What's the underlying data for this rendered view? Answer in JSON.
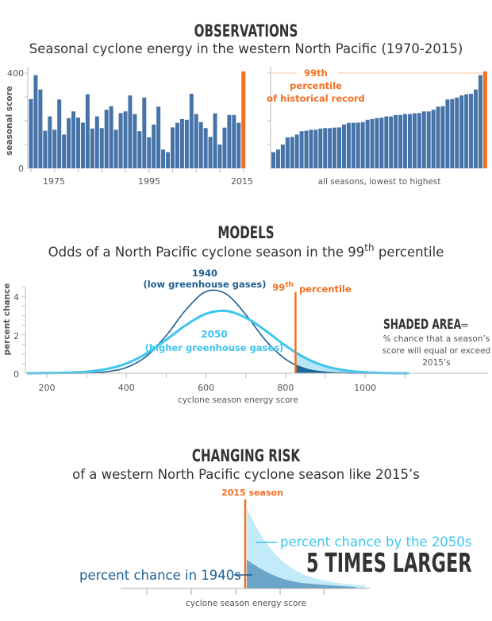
{
  "colors": {
    "bar": "#4673a8",
    "highlight": "#f26f21",
    "dark_blue": "#1d5e92",
    "light_blue": "#3ec5f0",
    "text": "#333333"
  },
  "sections": {
    "observations": {
      "heading": "OBSERVATIONS",
      "subtitle": "Seasonal cyclone energy in the western North Pacific (1970-2015)"
    },
    "models": {
      "heading": "MODELS",
      "subtitle_pre": "Odds of a North Pacific cyclone season in the 99",
      "subtitle_sup": "th",
      "subtitle_post": " percentile"
    },
    "risk": {
      "heading": "CHANGING RISK",
      "subtitle": "of a western North Pacific cyclone season like 2015’s"
    }
  },
  "chart_data": [
    {
      "type": "bar",
      "ylabel": "seasonal score",
      "ylim": [
        0,
        400
      ],
      "yticks": [
        "0",
        "400"
      ],
      "xticks": [
        "1975",
        "1995",
        "2015"
      ],
      "highlight_year": 2015,
      "x": [
        1970,
        1971,
        1972,
        1973,
        1974,
        1975,
        1976,
        1977,
        1978,
        1979,
        1980,
        1981,
        1982,
        1983,
        1984,
        1985,
        1986,
        1987,
        1988,
        1989,
        1990,
        1991,
        1992,
        1993,
        1994,
        1995,
        1996,
        1997,
        1998,
        1999,
        2000,
        2001,
        2002,
        2003,
        2004,
        2005,
        2006,
        2007,
        2008,
        2009,
        2010,
        2011,
        2012,
        2013,
        2014,
        2015
      ],
      "values": [
        291,
        391,
        331,
        158,
        218,
        162,
        289,
        142,
        211,
        239,
        213,
        192,
        311,
        167,
        218,
        169,
        246,
        261,
        162,
        232,
        239,
        306,
        228,
        156,
        297,
        130,
        184,
        259,
        79,
        68,
        172,
        191,
        207,
        204,
        313,
        228,
        194,
        169,
        132,
        231,
        100,
        171,
        224,
        224,
        191,
        407
      ]
    },
    {
      "type": "bar",
      "xlabel": "all seasons, lowest to highest",
      "sorted_from": "same values as first chart, sorted ascending",
      "ylim": [
        0,
        400
      ],
      "reference_line": {
        "label_line1": "99th",
        "label_line2": "percentile",
        "label_line3": "of historical record"
      }
    },
    {
      "type": "line",
      "xlabel": "cyclone season energy score",
      "ylabel": "percent chance",
      "xlim": [
        150,
        1110
      ],
      "ylim": [
        0,
        4.6
      ],
      "xticks": [
        "200",
        "400",
        "600",
        "800",
        "1000"
      ],
      "yticks": [
        "0",
        "2",
        "4"
      ],
      "x": [
        150,
        200,
        250,
        300,
        350,
        400,
        450,
        500,
        550,
        600,
        650,
        700,
        750,
        800,
        850,
        900,
        950,
        1000,
        1050,
        1100
      ],
      "series": [
        {
          "name": "1940",
          "sublabel": "(low greenhouse gases)",
          "color": "#1d5e92",
          "values": [
            0,
            0,
            0,
            0.01,
            0.08,
            0.3,
            0.88,
            1.96,
            3.31,
            4.25,
            4.13,
            3.05,
            1.7,
            0.73,
            0.23,
            0.06,
            0.01,
            0,
            0,
            0
          ]
        },
        {
          "name": "2050",
          "sublabel": "(higher greenhouse gases)",
          "color": "#3ec5f0",
          "values": [
            0,
            0.01,
            0.03,
            0.08,
            0.22,
            0.51,
            1.02,
            1.74,
            2.51,
            3.09,
            3.24,
            2.89,
            2.21,
            1.43,
            0.79,
            0.37,
            0.15,
            0.05,
            0.01,
            0
          ]
        }
      ],
      "threshold": {
        "value": 825,
        "label_main": "99",
        "label_sup": "th",
        "label_post": "percentile"
      },
      "annotation": {
        "title": "SHADED AREA",
        "equals": "=",
        "line1": "% chance that a season’s",
        "line2": "score will equal or exceed",
        "line3": "2015’s"
      }
    },
    {
      "type": "area",
      "xlabel": "cyclone season energy score",
      "marker_label": "2015 season",
      "label_2050": "percent chance by the 2050s",
      "label_1940": "percent chance in 1940s",
      "headline": "5 TIMES LARGER"
    }
  ]
}
